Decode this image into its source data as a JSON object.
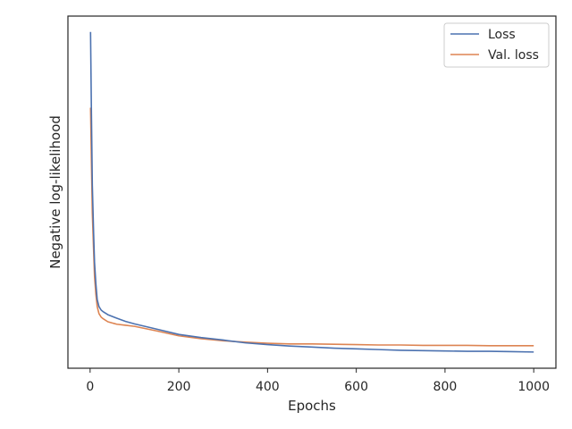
{
  "chart_data": {
    "type": "line",
    "xlabel": "Epochs",
    "ylabel": "Negative log-likelihood",
    "xlim": [
      -50,
      1050
    ],
    "ylim": [
      0,
      100
    ],
    "x_ticks": [
      0,
      200,
      400,
      600,
      800,
      1000
    ],
    "x_tick_labels": [
      "0",
      "200",
      "400",
      "600",
      "800",
      "1000"
    ],
    "y_ticks_shown": false,
    "grid": false,
    "legend_position": "top-right",
    "series": [
      {
        "name": "Loss",
        "color": "#4c72b0",
        "x": [
          1,
          3,
          5,
          8,
          10,
          13,
          16,
          20,
          25,
          30,
          40,
          60,
          80,
          100,
          150,
          200,
          250,
          300,
          350,
          400,
          450,
          500,
          550,
          600,
          650,
          700,
          750,
          800,
          850,
          900,
          950,
          1000
        ],
        "y": [
          95.5,
          72,
          52,
          38,
          30,
          24,
          19.5,
          17.5,
          16.5,
          16,
          15.2,
          14.2,
          13.3,
          12.6,
          11.1,
          9.6,
          8.7,
          8.0,
          7.2,
          6.7,
          6.3,
          6.0,
          5.7,
          5.5,
          5.3,
          5.1,
          5.0,
          4.9,
          4.8,
          4.8,
          4.7,
          4.6
        ]
      },
      {
        "name": "Val. loss",
        "color": "#dd8452",
        "x": [
          1,
          3,
          5,
          8,
          10,
          13,
          16,
          20,
          25,
          30,
          40,
          60,
          80,
          100,
          150,
          200,
          250,
          300,
          350,
          400,
          450,
          500,
          550,
          600,
          650,
          700,
          750,
          800,
          850,
          900,
          950,
          1000
        ],
        "y": [
          74,
          58,
          44,
          33,
          26,
          21,
          17.5,
          15.5,
          14.5,
          14,
          13.2,
          12.5,
          12.2,
          11.9,
          10.6,
          9.2,
          8.4,
          7.8,
          7.4,
          7.1,
          6.9,
          6.9,
          6.8,
          6.7,
          6.6,
          6.6,
          6.5,
          6.5,
          6.5,
          6.4,
          6.4,
          6.4
        ]
      }
    ]
  }
}
